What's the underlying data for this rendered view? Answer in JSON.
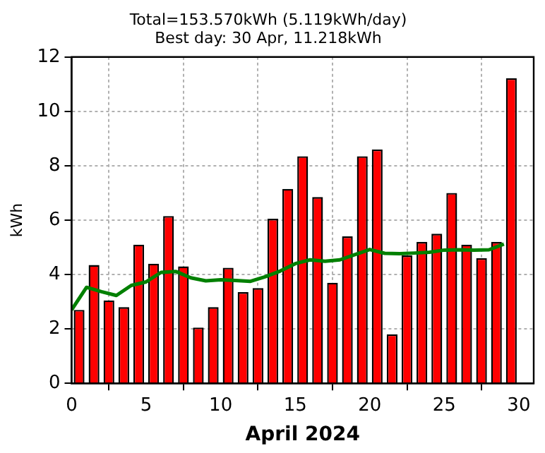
{
  "chart_data": {
    "type": "bar",
    "title": "Total=153.570kWh (5.119kWh/day)",
    "subtitle": "Best day: 30 Apr, 11.218kWh",
    "xlabel": "April 2024",
    "ylabel": "kWh",
    "xlim": [
      0,
      31
    ],
    "xticks": [
      0,
      5,
      10,
      15,
      20,
      25,
      30
    ],
    "ylim": [
      0,
      12
    ],
    "yticks": [
      0,
      2,
      4,
      6,
      8,
      10,
      12
    ],
    "grid": true,
    "legend": false,
    "series": [
      {
        "color": "#ff0000",
        "x": [
          0.5,
          1.5,
          2.5,
          3.5,
          4.5,
          5.5,
          6.5,
          7.5,
          8.5,
          9.5,
          10.5,
          11.5,
          12.5,
          13.5,
          14.5,
          15.5,
          16.5,
          17.5,
          18.5,
          19.5,
          20.5,
          21.5,
          22.5,
          23.5,
          24.5,
          25.5,
          26.5,
          27.5,
          28.5,
          29.5
        ],
        "values": [
          2.7,
          4.35,
          3.05,
          2.8,
          5.1,
          4.4,
          6.15,
          4.3,
          2.05,
          2.8,
          4.25,
          3.35,
          3.5,
          6.05,
          7.15,
          8.35,
          6.85,
          3.7,
          5.4,
          8.35,
          8.6,
          1.8,
          4.7,
          5.2,
          5.5,
          7.0,
          5.1,
          4.6,
          5.2,
          11.218
        ]
      },
      {
        "type": "line",
        "color": "#008000",
        "marker": "none",
        "line_style": "solid",
        "x": [
          0,
          1,
          2,
          3,
          4,
          5,
          6,
          7,
          8,
          9,
          10,
          11,
          12,
          13,
          14,
          15,
          16,
          17,
          18,
          19,
          20,
          21,
          22,
          23,
          24,
          25,
          26,
          27,
          28,
          29
        ],
        "values": [
          2.7,
          3.53,
          3.37,
          3.23,
          3.6,
          3.73,
          4.08,
          4.11,
          3.88,
          3.77,
          3.81,
          3.78,
          3.75,
          3.92,
          4.13,
          4.4,
          4.54,
          4.49,
          4.54,
          4.73,
          4.92,
          4.78,
          4.77,
          4.79,
          4.82,
          4.9,
          4.91,
          4.9,
          4.91,
          5.12
        ]
      }
    ]
  }
}
